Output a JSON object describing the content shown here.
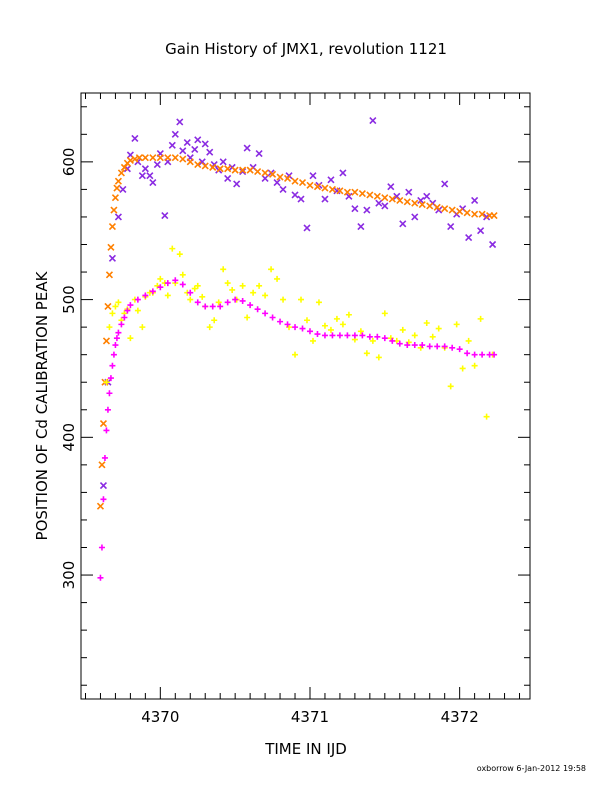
{
  "chart_data": {
    "type": "scatter",
    "title": "Gain History of JMX1, revolution 1121",
    "xlabel": "TIME IN IJD",
    "ylabel": "POSITION OF Cd CALIBRATION PEAK",
    "xlim": [
      4369.47,
      4372.47
    ],
    "ylim": [
      210,
      650
    ],
    "xticks": [
      "4370",
      "4371",
      "4372"
    ],
    "yticks": [
      "300",
      "400",
      "500",
      "600"
    ],
    "grid": false,
    "series": [
      {
        "marker": "x",
        "color": "#8a2be2",
        "x": [
          4369.62,
          4369.65,
          4369.68,
          4369.72,
          4369.75,
          4369.78,
          4369.8,
          4369.83,
          4369.85,
          4369.88,
          4369.9,
          4369.93,
          4369.95,
          4369.98,
          4370.0,
          4370.03,
          4370.05,
          4370.08,
          4370.1,
          4370.13,
          4370.15,
          4370.18,
          4370.2,
          4370.23,
          4370.25,
          4370.28,
          4370.3,
          4370.33,
          4370.36,
          4370.39,
          4370.42,
          4370.45,
          4370.48,
          4370.51,
          4370.55,
          4370.58,
          4370.62,
          4370.66,
          4370.7,
          4370.74,
          4370.78,
          4370.82,
          4370.86,
          4370.9,
          4370.94,
          4370.98,
          4371.02,
          4371.06,
          4371.1,
          4371.14,
          4371.18,
          4371.22,
          4371.26,
          4371.3,
          4371.34,
          4371.38,
          4371.42,
          4371.46,
          4371.5,
          4371.54,
          4371.58,
          4371.62,
          4371.66,
          4371.7,
          4371.74,
          4371.78,
          4371.82,
          4371.86,
          4371.9,
          4371.94,
          4371.98,
          4372.02,
          4372.06,
          4372.1,
          4372.14,
          4372.18,
          4372.22
        ],
        "y": [
          365,
          440,
          530,
          560,
          580,
          595,
          605,
          617,
          600,
          590,
          595,
          590,
          585,
          598,
          606,
          561,
          600,
          612,
          620,
          629,
          608,
          614,
          603,
          609,
          616,
          600,
          613,
          607,
          598,
          594,
          600,
          588,
          596,
          584,
          593,
          610,
          596,
          606,
          588,
          592,
          585,
          580,
          590,
          576,
          573,
          552,
          590,
          583,
          573,
          587,
          579,
          592,
          575,
          566,
          553,
          565,
          630,
          570,
          568,
          582,
          575,
          555,
          578,
          560,
          572,
          575,
          570,
          565,
          584,
          553,
          562,
          566,
          545,
          572,
          550,
          560,
          540
        ]
      },
      {
        "marker": "x",
        "color": "#ff8000",
        "x": [
          4369.6,
          4369.61,
          4369.62,
          4369.63,
          4369.64,
          4369.65,
          4369.66,
          4369.67,
          4369.68,
          4369.69,
          4369.7,
          4369.71,
          4369.72,
          4369.74,
          4369.76,
          4369.78,
          4369.8,
          4369.83,
          4369.86,
          4369.9,
          4369.95,
          4370.0,
          4370.05,
          4370.1,
          4370.15,
          4370.2,
          4370.25,
          4370.3,
          4370.35,
          4370.4,
          4370.45,
          4370.5,
          4370.55,
          4370.6,
          4370.65,
          4370.7,
          4370.75,
          4370.8,
          4370.85,
          4370.9,
          4370.95,
          4371.0,
          4371.05,
          4371.1,
          4371.15,
          4371.2,
          4371.25,
          4371.3,
          4371.35,
          4371.4,
          4371.45,
          4371.5,
          4371.55,
          4371.6,
          4371.65,
          4371.7,
          4371.75,
          4371.8,
          4371.85,
          4371.9,
          4371.95,
          4372.0,
          4372.05,
          4372.1,
          4372.15,
          4372.2,
          4372.23
        ],
        "y": [
          350,
          380,
          410,
          440,
          470,
          495,
          518,
          538,
          553,
          565,
          574,
          581,
          586,
          592,
          596,
          599,
          601,
          602,
          603,
          603,
          603,
          603,
          603,
          603,
          602,
          600,
          598,
          597,
          596,
          595,
          595,
          594,
          594,
          594,
          593,
          592,
          591,
          589,
          588,
          586,
          585,
          583,
          582,
          581,
          580,
          579,
          578,
          578,
          577,
          576,
          575,
          574,
          573,
          572,
          571,
          570,
          569,
          568,
          567,
          566,
          565,
          564,
          563,
          562,
          562,
          561,
          561
        ]
      },
      {
        "marker": "+",
        "color": "#ffff00",
        "x": [
          4369.64,
          4369.66,
          4369.68,
          4369.7,
          4369.72,
          4369.74,
          4369.76,
          4369.78,
          4369.8,
          4369.83,
          4369.85,
          4369.88,
          4369.9,
          4369.93,
          4369.95,
          4369.98,
          4370.0,
          4370.03,
          4370.05,
          4370.08,
          4370.1,
          4370.13,
          4370.15,
          4370.18,
          4370.2,
          4370.23,
          4370.25,
          4370.28,
          4370.3,
          4370.33,
          4370.36,
          4370.39,
          4370.42,
          4370.45,
          4370.48,
          4370.51,
          4370.55,
          4370.58,
          4370.62,
          4370.66,
          4370.7,
          4370.74,
          4370.78,
          4370.82,
          4370.86,
          4370.9,
          4370.94,
          4370.98,
          4371.02,
          4371.06,
          4371.1,
          4371.14,
          4371.18,
          4371.22,
          4371.26,
          4371.3,
          4371.34,
          4371.38,
          4371.42,
          4371.46,
          4371.5,
          4371.54,
          4371.58,
          4371.62,
          4371.66,
          4371.7,
          4371.74,
          4371.78,
          4371.82,
          4371.86,
          4371.9,
          4371.94,
          4371.98,
          4372.02,
          4372.06,
          4372.1,
          4372.14,
          4372.18,
          4372.22
        ],
        "y": [
          440,
          480,
          490,
          495,
          498,
          485,
          490,
          493,
          472,
          500,
          492,
          480,
          502,
          505,
          505,
          510,
          515,
          512,
          503,
          537,
          512,
          533,
          518,
          505,
          500,
          508,
          510,
          502,
          495,
          480,
          485,
          498,
          522,
          512,
          507,
          500,
          510,
          487,
          505,
          510,
          503,
          522,
          515,
          500,
          480,
          460,
          500,
          485,
          470,
          498,
          481,
          478,
          486,
          482,
          489,
          471,
          477,
          461,
          470,
          458,
          490,
          472,
          470,
          478,
          469,
          474,
          465,
          483,
          473,
          479,
          465,
          437,
          482,
          450,
          470,
          452,
          486,
          415,
          460
        ]
      },
      {
        "marker": "+",
        "color": "#ff00ff",
        "x": [
          4369.6,
          4369.61,
          4369.62,
          4369.63,
          4369.64,
          4369.65,
          4369.66,
          4369.67,
          4369.68,
          4369.69,
          4369.7,
          4369.71,
          4369.72,
          4369.74,
          4369.76,
          4369.78,
          4369.8,
          4369.85,
          4369.9,
          4369.95,
          4370.0,
          4370.05,
          4370.1,
          4370.15,
          4370.2,
          4370.25,
          4370.3,
          4370.35,
          4370.4,
          4370.45,
          4370.5,
          4370.55,
          4370.6,
          4370.65,
          4370.7,
          4370.75,
          4370.8,
          4370.85,
          4370.9,
          4370.95,
          4371.0,
          4371.05,
          4371.1,
          4371.15,
          4371.2,
          4371.25,
          4371.3,
          4371.35,
          4371.4,
          4371.45,
          4371.5,
          4371.55,
          4371.6,
          4371.65,
          4371.7,
          4371.75,
          4371.8,
          4371.85,
          4371.9,
          4371.95,
          4372.0,
          4372.05,
          4372.1,
          4372.15,
          4372.2,
          4372.23
        ],
        "y": [
          298,
          320,
          355,
          385,
          405,
          420,
          432,
          443,
          452,
          460,
          467,
          472,
          476,
          482,
          487,
          492,
          496,
          500,
          503,
          506,
          509,
          512,
          514,
          511,
          505,
          498,
          495,
          495,
          495,
          498,
          500,
          499,
          496,
          493,
          490,
          487,
          484,
          482,
          480,
          479,
          477,
          475,
          474,
          474,
          474,
          474,
          474,
          474,
          473,
          473,
          472,
          470,
          468,
          467,
          467,
          467,
          466,
          466,
          466,
          465,
          464,
          461,
          460,
          460,
          460,
          460
        ]
      }
    ]
  },
  "footer": "oxborrow  6-Jan-2012 19:58"
}
